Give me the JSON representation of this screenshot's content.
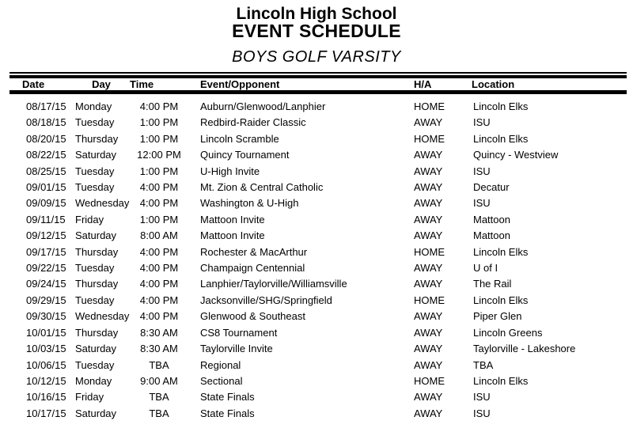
{
  "header": {
    "school": "Lincoln High School",
    "title": "EVENT SCHEDULE",
    "subtitle": "BOYS GOLF VARSITY"
  },
  "table": {
    "columns": [
      "Date",
      "Day",
      "Time",
      "Event/Opponent",
      "H/A",
      "Location"
    ],
    "rows": [
      [
        "08/17/15",
        "Monday",
        "4:00 PM",
        "Auburn/Glenwood/Lanphier",
        "HOME",
        "Lincoln Elks"
      ],
      [
        "08/18/15",
        "Tuesday",
        "1:00 PM",
        "Redbird-Raider Classic",
        "AWAY",
        "ISU"
      ],
      [
        "08/20/15",
        "Thursday",
        "1:00 PM",
        "Lincoln Scramble",
        "HOME",
        "Lincoln Elks"
      ],
      [
        "08/22/15",
        "Saturday",
        "12:00 PM",
        "Quincy Tournament",
        "AWAY",
        "Quincy - Westview"
      ],
      [
        "08/25/15",
        "Tuesday",
        "1:00 PM",
        "U-High Invite",
        "AWAY",
        "ISU"
      ],
      [
        "09/01/15",
        "Tuesday",
        "4:00 PM",
        "Mt. Zion & Central Catholic",
        "AWAY",
        "Decatur"
      ],
      [
        "09/09/15",
        "Wednesday",
        "4:00 PM",
        "Washington & U-High",
        "AWAY",
        "ISU"
      ],
      [
        "09/11/15",
        "Friday",
        "1:00 PM",
        "Mattoon Invite",
        "AWAY",
        "Mattoon"
      ],
      [
        "09/12/15",
        "Saturday",
        "8:00 AM",
        "Mattoon Invite",
        "AWAY",
        "Mattoon"
      ],
      [
        "09/17/15",
        "Thursday",
        "4:00 PM",
        "Rochester & MacArthur",
        "HOME",
        "Lincoln Elks"
      ],
      [
        "09/22/15",
        "Tuesday",
        "4:00 PM",
        "Champaign Centennial",
        "AWAY",
        "U of I"
      ],
      [
        "09/24/15",
        "Thursday",
        "4:00 PM",
        "Lanphier/Taylorville/Williamsville",
        "AWAY",
        "The Rail"
      ],
      [
        "09/29/15",
        "Tuesday",
        "4:00 PM",
        "Jacksonville/SHG/Springfield",
        "HOME",
        "Lincoln Elks"
      ],
      [
        "09/30/15",
        "Wednesday",
        "4:00 PM",
        "Glenwood & Southeast",
        "AWAY",
        "Piper Glen"
      ],
      [
        "10/01/15",
        "Thursday",
        "8:30 AM",
        "CS8 Tournament",
        "AWAY",
        "Lincoln Greens"
      ],
      [
        "10/03/15",
        "Saturday",
        "8:30 AM",
        "Taylorville Invite",
        "AWAY",
        "Taylorville - Lakeshore"
      ],
      [
        "10/06/15",
        "Tuesday",
        "TBA",
        "Regional",
        "AWAY",
        "TBA"
      ],
      [
        "10/12/15",
        "Monday",
        "9:00 AM",
        "Sectional",
        "HOME",
        "Lincoln Elks"
      ],
      [
        "10/16/15",
        "Friday",
        "TBA",
        "State Finals",
        "AWAY",
        "ISU"
      ],
      [
        "10/17/15",
        "Saturday",
        "TBA",
        "State Finals",
        "AWAY",
        "ISU"
      ]
    ]
  },
  "colors": {
    "text": "#000000",
    "background": "#ffffff",
    "rule": "#000000"
  }
}
